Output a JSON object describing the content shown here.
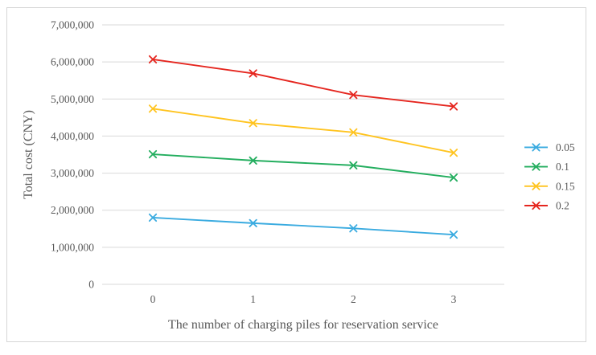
{
  "figure": {
    "background_color": "#FFFFFF",
    "border_color": "#D6D6D6"
  },
  "chart_data": {
    "type": "line",
    "title": "",
    "xlabel": "The number of charging piles for reservation service",
    "ylabel": "Total cost (CNY)",
    "categories": [
      "0",
      "1",
      "2",
      "3"
    ],
    "series": [
      {
        "name": "0.05",
        "color": "#3AABE0",
        "values": [
          1800000,
          1650000,
          1510000,
          1340000
        ]
      },
      {
        "name": "0.1",
        "color": "#24AE5F",
        "values": [
          3510000,
          3340000,
          3210000,
          2880000
        ]
      },
      {
        "name": "0.15",
        "color": "#FFC420",
        "values": [
          4740000,
          4350000,
          4100000,
          3550000
        ]
      },
      {
        "name": "0.2",
        "color": "#E5261F",
        "values": [
          6070000,
          5690000,
          5110000,
          4800000
        ]
      }
    ],
    "ylim": [
      0,
      7000000
    ],
    "y_ticks": [
      {
        "value": 0,
        "label": "0"
      },
      {
        "value": 1000000,
        "label": "1,000,000"
      },
      {
        "value": 2000000,
        "label": "2,000,000"
      },
      {
        "value": 3000000,
        "label": "3,000,000"
      },
      {
        "value": 4000000,
        "label": "4,000,000"
      },
      {
        "value": 5000000,
        "label": "5,000,000"
      },
      {
        "value": 6000000,
        "label": "6,000,000"
      },
      {
        "value": 7000000,
        "label": "7,000,000"
      }
    ],
    "grid": true,
    "grid_color": "#D9D9D9",
    "text_color": "#595959",
    "marker": "x",
    "legend_position": "right",
    "legend_labels": [
      "0.05",
      "0.1",
      "0.15",
      "0.2"
    ]
  }
}
